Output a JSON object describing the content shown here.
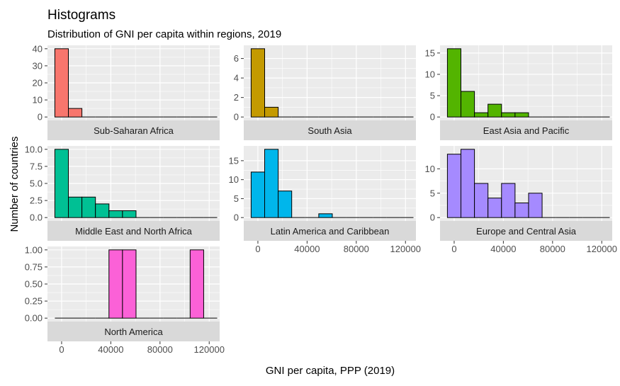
{
  "chart_data": {
    "type": "bar",
    "title": "Histograms",
    "subtitle": "Distribution of GNI per capita within regions, 2019",
    "xlabel": "GNI per capita, PPP (2019)",
    "ylabel": "Number of countries",
    "bin_width": 11000,
    "bin_starts": [
      -5500,
      5500,
      16500,
      27500,
      38500,
      49500,
      60500,
      71500,
      82500,
      93500,
      104500,
      115500
    ],
    "xlim": [
      -11500,
      128500
    ],
    "x_ticks": [
      0,
      40000,
      80000,
      120000
    ],
    "x_tick_labels": [
      "0",
      "40000",
      "80000",
      "120000"
    ],
    "grid": true,
    "bar_outline": "#000000",
    "panel_background": "#ebebeb",
    "strip_background": "#d9d9d9",
    "gridline_color": "#ffffff",
    "facets": [
      {
        "name": "Sub-Saharan Africa",
        "color": "#F8766D",
        "counts": [
          40,
          5,
          0,
          0,
          0,
          0,
          0,
          0,
          0,
          0,
          0,
          0
        ],
        "ylim": [
          -2,
          42
        ],
        "y_ticks": [
          0,
          10,
          20,
          30,
          40
        ],
        "y_tick_labels": [
          "0",
          "10",
          "20",
          "30",
          "40"
        ]
      },
      {
        "name": "South Asia",
        "color": "#C49A00",
        "counts": [
          7,
          1,
          0,
          0,
          0,
          0,
          0,
          0,
          0,
          0,
          0,
          0
        ],
        "ylim": [
          -0.35,
          7.35
        ],
        "y_ticks": [
          0,
          2,
          4,
          6
        ],
        "y_tick_labels": [
          "0",
          "2",
          "4",
          "6"
        ]
      },
      {
        "name": "East Asia and Pacific",
        "color": "#53B400",
        "counts": [
          16,
          6,
          1,
          3,
          1,
          1,
          0,
          0,
          0,
          0,
          0,
          0
        ],
        "ylim": [
          -0.8,
          16.8
        ],
        "y_ticks": [
          0,
          5,
          10,
          15
        ],
        "y_tick_labels": [
          "0",
          "5",
          "10",
          "15"
        ]
      },
      {
        "name": "Middle East and North Africa",
        "color": "#00C094",
        "counts": [
          10,
          3,
          3,
          2,
          1,
          1,
          0,
          0,
          0,
          0,
          0,
          0
        ],
        "ylim": [
          -0.5,
          10.5
        ],
        "y_ticks": [
          0,
          2.5,
          5,
          7.5,
          10
        ],
        "y_tick_labels": [
          "0.0",
          "2.5",
          "5.0",
          "7.5",
          "10.0"
        ]
      },
      {
        "name": "Latin America and Caribbean",
        "color": "#00B6EB",
        "counts": [
          12,
          18,
          7,
          0,
          0,
          1,
          0,
          0,
          0,
          0,
          0,
          0
        ],
        "ylim": [
          -0.9,
          18.9
        ],
        "y_ticks": [
          0,
          5,
          10,
          15
        ],
        "y_tick_labels": [
          "0",
          "5",
          "10",
          "15"
        ]
      },
      {
        "name": "Europe and Central Asia",
        "color": "#A58AFF",
        "counts": [
          13,
          14,
          7,
          4,
          7,
          3,
          5,
          0,
          0,
          0,
          0,
          0
        ],
        "ylim": [
          -0.7,
          14.7
        ],
        "y_ticks": [
          0,
          5,
          10
        ],
        "y_tick_labels": [
          "0",
          "5",
          "10"
        ]
      },
      {
        "name": "North America",
        "color": "#FB61D7",
        "counts": [
          0,
          0,
          0,
          0,
          1,
          1,
          0,
          0,
          0,
          0,
          1,
          0
        ],
        "ylim": [
          -0.05,
          1.05
        ],
        "y_ticks": [
          0,
          0.25,
          0.5,
          0.75,
          1
        ],
        "y_tick_labels": [
          "0.00",
          "0.25",
          "0.50",
          "0.75",
          "1.00"
        ]
      }
    ]
  }
}
